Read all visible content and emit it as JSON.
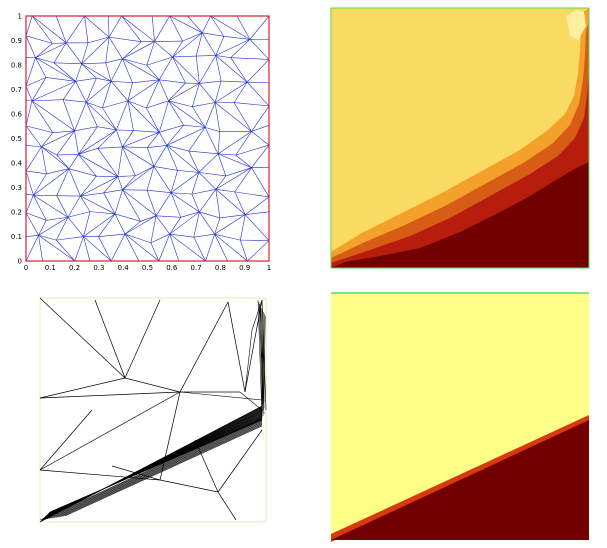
{
  "colors": {
    "mesh_border": "#d8202a",
    "mesh_edges": "#1f2fd6",
    "contour_light": "#f9da62",
    "contour_mid": "#f3a12a",
    "contour_dark": "#b61d0c",
    "contour_darkest": "#730000",
    "frame_green": "#5cd65c",
    "smooth_light": "#ffff88",
    "adapted_mesh_edges": "#000000"
  },
  "panels": [
    {
      "name": "initial-mesh",
      "x_ticks": [
        "0",
        "0.1",
        "0.2",
        "0.3",
        "0.4",
        "0.5",
        "0.6",
        "0.7",
        "0.8",
        "0.9",
        "1"
      ],
      "y_ticks": [
        "0",
        "0.1",
        "0.2",
        "0.3",
        "0.4",
        "0.5",
        "0.6",
        "0.7",
        "0.8",
        "0.9",
        "1"
      ]
    },
    {
      "name": "coarse-contour-solution"
    },
    {
      "name": "adapted-mesh"
    },
    {
      "name": "fine-contour-solution"
    }
  ]
}
